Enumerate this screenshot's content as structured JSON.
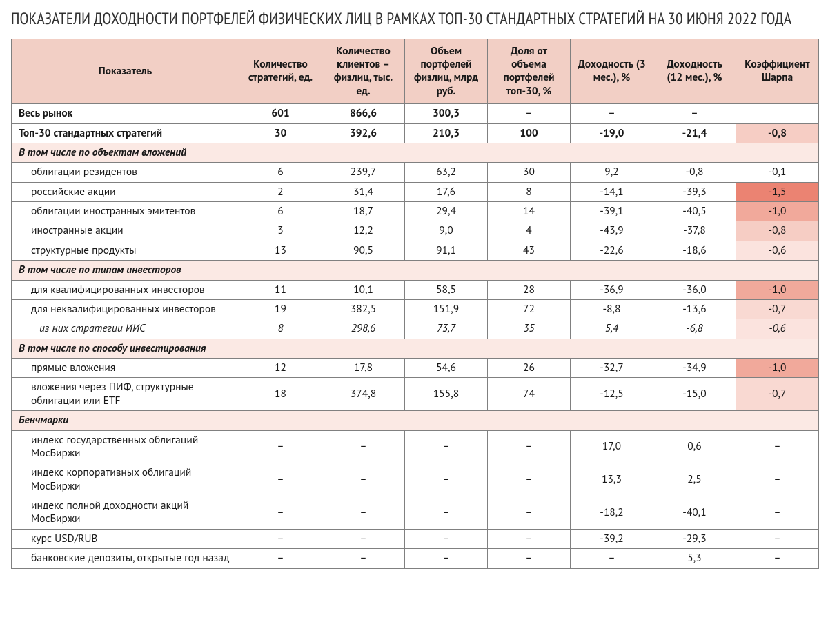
{
  "title": "ПОКАЗАТЕЛИ ДОХОДНОСТИ ПОРТФЕЛЕЙ ФИЗИЧЕСКИХ ЛИЦ В РАМКАХ ТОП-30 СТАНДАРТНЫХ СТРАТЕГИЙ НА 30 ИЮНЯ 2022 ГОДА",
  "columns": [
    "Показатель",
    "Количество стратегий, ед.",
    "Количество клиентов – физлиц, тыс. ед.",
    "Объем портфелей физлиц, млрд руб.",
    "Доля от объема портфелей топ-30, %",
    "Доходность (3 мес.), %",
    "Доходность (12 мес.), %",
    "Коэффициент Шарпа"
  ],
  "sharpe_colors": {
    "none": "#ffffff",
    "m0_1": "#ffffff",
    "m0_6": "#fbe3de",
    "m0_7": "#f9d9d2",
    "m0_8": "#f6cdc4",
    "m1_0": "#f1a99b",
    "m1_5": "#eb8372"
  },
  "rows": [
    {
      "type": "bold",
      "label": "Весь рынок",
      "vals": [
        "601",
        "866,6",
        "300,3",
        "–",
        "–",
        "–",
        ""
      ],
      "sharpe_key": "none"
    },
    {
      "type": "bold",
      "label": "Топ-30 стандартных стратегий",
      "vals": [
        "30",
        "392,6",
        "210,3",
        "100",
        "-19,0",
        "-21,4",
        "-0,8"
      ],
      "sharpe_key": "m0_8"
    },
    {
      "type": "section",
      "label": "В том числе по объектам вложений"
    },
    {
      "type": "sub",
      "label": "облигации резидентов",
      "vals": [
        "6",
        "239,7",
        "63,2",
        "30",
        "9,2",
        "-0,8",
        "-0,1"
      ],
      "sharpe_key": "m0_1"
    },
    {
      "type": "sub",
      "label": "российские акции",
      "vals": [
        "2",
        "31,4",
        "17,6",
        "8",
        "-14,1",
        "-39,3",
        "-1,5"
      ],
      "sharpe_key": "m1_5"
    },
    {
      "type": "sub",
      "label": "облигации иностранных эмитентов",
      "vals": [
        "6",
        "18,7",
        "29,4",
        "14",
        "-39,1",
        "-40,5",
        "-1,0"
      ],
      "sharpe_key": "m1_0"
    },
    {
      "type": "sub",
      "label": "иностранные акции",
      "vals": [
        "3",
        "12,2",
        "9,0",
        "4",
        "-43,9",
        "-37,8",
        "-0,8"
      ],
      "sharpe_key": "m0_8"
    },
    {
      "type": "sub",
      "label": "структурные продукты",
      "vals": [
        "13",
        "90,5",
        "91,1",
        "43",
        "-22,6",
        "-18,6",
        "-0,6"
      ],
      "sharpe_key": "m0_6"
    },
    {
      "type": "section",
      "label": "В том числе по типам инвесторов"
    },
    {
      "type": "sub",
      "label": "для квалифицированных инвесторов",
      "vals": [
        "11",
        "10,1",
        "58,5",
        "28",
        "-36,9",
        "-36,0",
        "-1,0"
      ],
      "sharpe_key": "m1_0"
    },
    {
      "type": "sub",
      "label": "для неквалифицированных инвесторов",
      "vals": [
        "19",
        "382,5",
        "151,9",
        "72",
        "-8,8",
        "-13,6",
        "-0,7"
      ],
      "sharpe_key": "m0_7"
    },
    {
      "type": "subsub italic",
      "label": "из них стратегии ИИС",
      "vals": [
        "8",
        "298,6",
        "73,7",
        "35",
        "5,4",
        "-6,8",
        "-0,6"
      ],
      "sharpe_key": "m0_6"
    },
    {
      "type": "section",
      "label": "В том числе по способу инвестирования"
    },
    {
      "type": "sub",
      "label": "прямые вложения",
      "vals": [
        "12",
        "17,8",
        "54,6",
        "26",
        "-32,7",
        "-34,9",
        "-1,0"
      ],
      "sharpe_key": "m1_0"
    },
    {
      "type": "sub",
      "label": "вложения через ПИФ, структурные облигации или ETF",
      "vals": [
        "18",
        "374,8",
        "155,8",
        "74",
        "-12,5",
        "-15,0",
        "-0,7"
      ],
      "sharpe_key": "m0_7"
    },
    {
      "type": "section",
      "label": "Бенчмарки"
    },
    {
      "type": "sub",
      "label": "индекс государственных облигаций МосБиржи",
      "vals": [
        "–",
        "–",
        "–",
        "–",
        "17,0",
        "0,6",
        "–"
      ],
      "sharpe_key": "none"
    },
    {
      "type": "sub",
      "label": "индекс корпоративных облигаций МосБиржи",
      "vals": [
        "–",
        "–",
        "–",
        "–",
        "13,3",
        "2,5",
        "–"
      ],
      "sharpe_key": "none"
    },
    {
      "type": "sub",
      "label": "индекс полной доходности акций МосБиржи",
      "vals": [
        "–",
        "–",
        "–",
        "–",
        "-18,2",
        "-40,1",
        "–"
      ],
      "sharpe_key": "none"
    },
    {
      "type": "sub",
      "label": "курс USD/RUB",
      "vals": [
        "–",
        "–",
        "–",
        "–",
        "-39,2",
        "-29,3",
        "–"
      ],
      "sharpe_key": "none"
    },
    {
      "type": "sub",
      "label": "банковские депозиты, открытые год назад",
      "vals": [
        "–",
        "–",
        "–",
        "–",
        "–",
        "5,3",
        "–"
      ],
      "sharpe_key": "none"
    }
  ]
}
